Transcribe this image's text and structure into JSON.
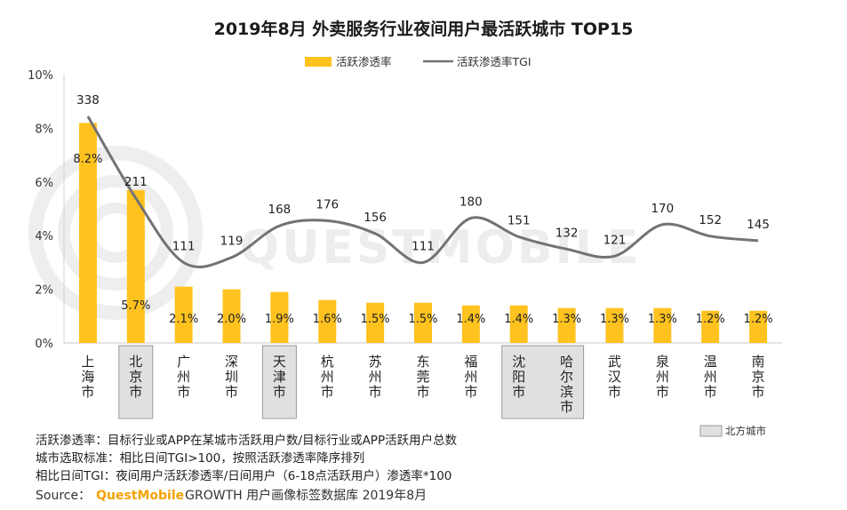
{
  "chart_data": {
    "type": "bar+line",
    "title": "2019年8月 外卖服务行业夜间用户最活跃城市 TOP15",
    "categories": [
      "上海市",
      "北京市",
      "广州市",
      "深圳市",
      "天津市",
      "杭州市",
      "苏州市",
      "东莞市",
      "福州市",
      "沈阳市",
      "哈尔滨市",
      "武汉市",
      "泉州市",
      "温州市",
      "南京市"
    ],
    "series": [
      {
        "name": "活跃渗透率",
        "kind": "bar",
        "color": "#FFC21F",
        "values": [
          8.2,
          5.7,
          2.1,
          2.0,
          1.9,
          1.6,
          1.5,
          1.5,
          1.4,
          1.4,
          1.3,
          1.3,
          1.3,
          1.2,
          1.2
        ],
        "labels": [
          "8.2%",
          "5.7%",
          "2.1%",
          "2.0%",
          "1.9%",
          "1.6%",
          "1.5%",
          "1.5%",
          "1.4%",
          "1.4%",
          "1.3%",
          "1.3%",
          "1.3%",
          "1.2%",
          "1.2%"
        ]
      },
      {
        "name": "活跃渗透率TGI",
        "kind": "line",
        "color": "#737373",
        "values": [
          338,
          211,
          111,
          119,
          168,
          176,
          156,
          111,
          180,
          151,
          132,
          121,
          170,
          152,
          145
        ]
      }
    ],
    "yaxis": {
      "min": 0,
      "max": 10,
      "ticks": [
        "0%",
        "2%",
        "4%",
        "6%",
        "8%",
        "10%"
      ]
    },
    "highlighted_categories": [
      "北京市",
      "天津市",
      "沈阳市",
      "哈尔滨市"
    ],
    "highlight_legend": "北方城市",
    "highlight_color": "#E0E0E0"
  },
  "notes": [
    "活跃渗透率：目标行业或APP在某城市活跃用户数/目标行业或APP活跃用户总数",
    "城市选取标准：相比日间TGI>100，按照活跃渗透率降序排列",
    "相比日间TGI：夜间用户活跃渗透率/日间用户（6-18点活跃用户）渗透率*100"
  ],
  "source": {
    "prefix": "Source：",
    "brand": "QuestMobile",
    "suffix": "GROWTH 用户画像标签数据库 2019年8月"
  },
  "watermark": "QUESTMOBILE"
}
